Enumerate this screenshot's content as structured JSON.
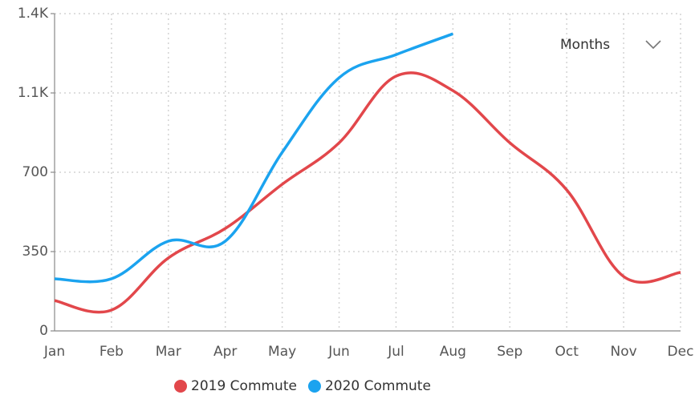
{
  "chart_data": {
    "type": "line",
    "categories": [
      "Jan",
      "Feb",
      "Mar",
      "Apr",
      "May",
      "Jun",
      "Jul",
      "Aug",
      "Sep",
      "Oct",
      "Nov",
      "Dec"
    ],
    "series": [
      {
        "name": "2019 Commute",
        "color": "#e2474b",
        "values": [
          134,
          92,
          322,
          452,
          647,
          830,
          1124,
          1060,
          830,
          622,
          240,
          258
        ]
      },
      {
        "name": "2020 Commute",
        "color": "#1ba3ef",
        "values": [
          230,
          230,
          396,
          396,
          788,
          1117,
          1219,
          1311,
          null,
          null,
          null,
          null
        ]
      }
    ],
    "ylim": [
      0,
      1400
    ],
    "yticks": [
      0,
      350,
      700,
      {
        "value": 1050,
        "label": "1.1K"
      },
      {
        "value": 1400,
        "label": "1.4K"
      }
    ],
    "grid": true,
    "legend": "bottom"
  },
  "controls": {
    "dropdown": "Months"
  }
}
